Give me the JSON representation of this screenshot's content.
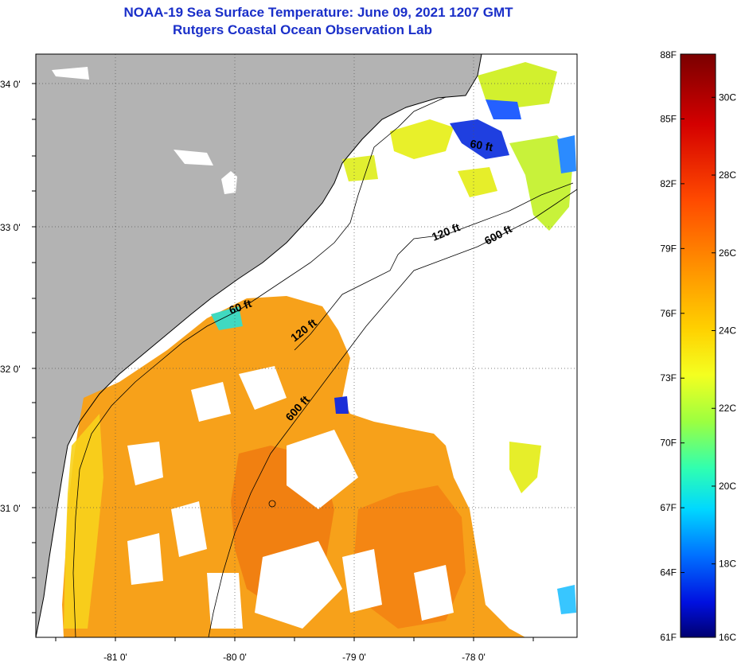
{
  "title": {
    "line1": "NOAA-19 Sea Surface Temperature:  June 09, 2021 1207 GMT",
    "line2": "Rutgers Coastal Ocean Observation Lab"
  },
  "map": {
    "colors": {
      "land": "#b3b3b3",
      "cloud": "#ffffff",
      "coast": "#000000"
    },
    "lat_ticks": [
      "34 0'",
      "33 0'",
      "32 0'",
      "31 0'"
    ],
    "lon_ticks": [
      "-81 0'",
      "-80 0'",
      "-79 0'",
      "-78 0'"
    ],
    "contour_labels": [
      "60 ft",
      "120 ft",
      "600 ft",
      "60 ft",
      "120 ft",
      "600 ft"
    ]
  },
  "colorbar": {
    "fahrenheit": [
      "88F",
      "85F",
      "82F",
      "79F",
      "76F",
      "73F",
      "70F",
      "67F",
      "64F",
      "61F"
    ],
    "celsius": [
      "30C",
      "28C",
      "26C",
      "24C",
      "22C",
      "20C",
      "18C",
      "16C"
    ],
    "stops": [
      "#800000",
      "#cc0000",
      "#ff3300",
      "#ff8c00",
      "#ffcc00",
      "#ffff33",
      "#aaff44",
      "#33ffcc",
      "#00ccff",
      "#0066ff",
      "#0000cc",
      "#000080"
    ]
  }
}
